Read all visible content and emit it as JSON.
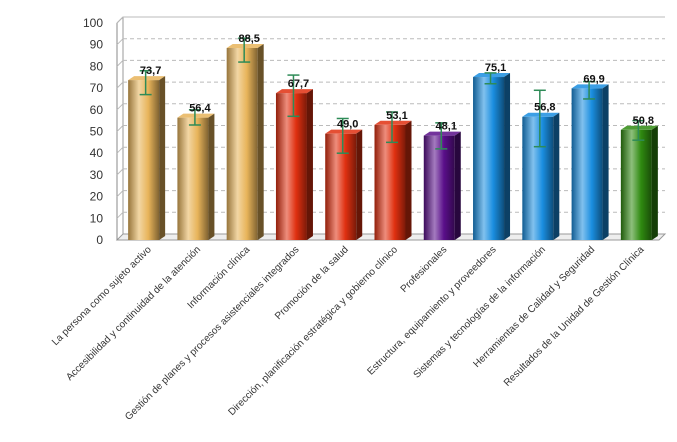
{
  "chart_data": {
    "type": "bar",
    "title": "",
    "xlabel": "",
    "ylabel": "",
    "ylim": [
      0,
      100
    ],
    "y_ticks": [
      "0",
      "10",
      "20",
      "30",
      "40",
      "50",
      "60",
      "70",
      "80",
      "90",
      "100"
    ],
    "grid": true,
    "style": "3d-cylinder",
    "categories": [
      "La persona como sujeto activo",
      "Accesibilidad y continuidad de la atención",
      "Información clínica",
      "Gestión de planes y procesos asistenciales integrados",
      "Promoción de la salud",
      "Dirección, planificación estratégica y gobierno clínico",
      "Profesionales",
      "Estructura, equipamiento y proveedores",
      "Sistemas y tecnologías de la información",
      "Herramientas de Calidad y Seguridad",
      "Resultados de la Unidad de Gestión Clínica"
    ],
    "values": [
      73.7,
      56.4,
      88.5,
      67.7,
      49.0,
      53.1,
      48.1,
      75.1,
      56.8,
      69.9,
      50.8
    ],
    "value_labels": [
      "73,7",
      "56,4",
      "88,5",
      "67,7",
      "49,0",
      "53,1",
      "48,1",
      "75,1",
      "56,8",
      "69,9",
      "50,8"
    ],
    "error_low": [
      67,
      53,
      82,
      57,
      40,
      45,
      42,
      72,
      43,
      65,
      46
    ],
    "error_high": [
      78,
      60,
      93,
      76,
      56,
      59,
      54,
      77,
      69,
      73,
      55
    ],
    "colors": [
      "#e8b45a",
      "#e8b45a",
      "#e8b45a",
      "#e03010",
      "#e03010",
      "#e03010",
      "#5a0f8a",
      "#1a8ee0",
      "#1a8ee0",
      "#1a8ee0",
      "#2f8a10"
    ],
    "error_bar_color": "#2e8b57"
  }
}
